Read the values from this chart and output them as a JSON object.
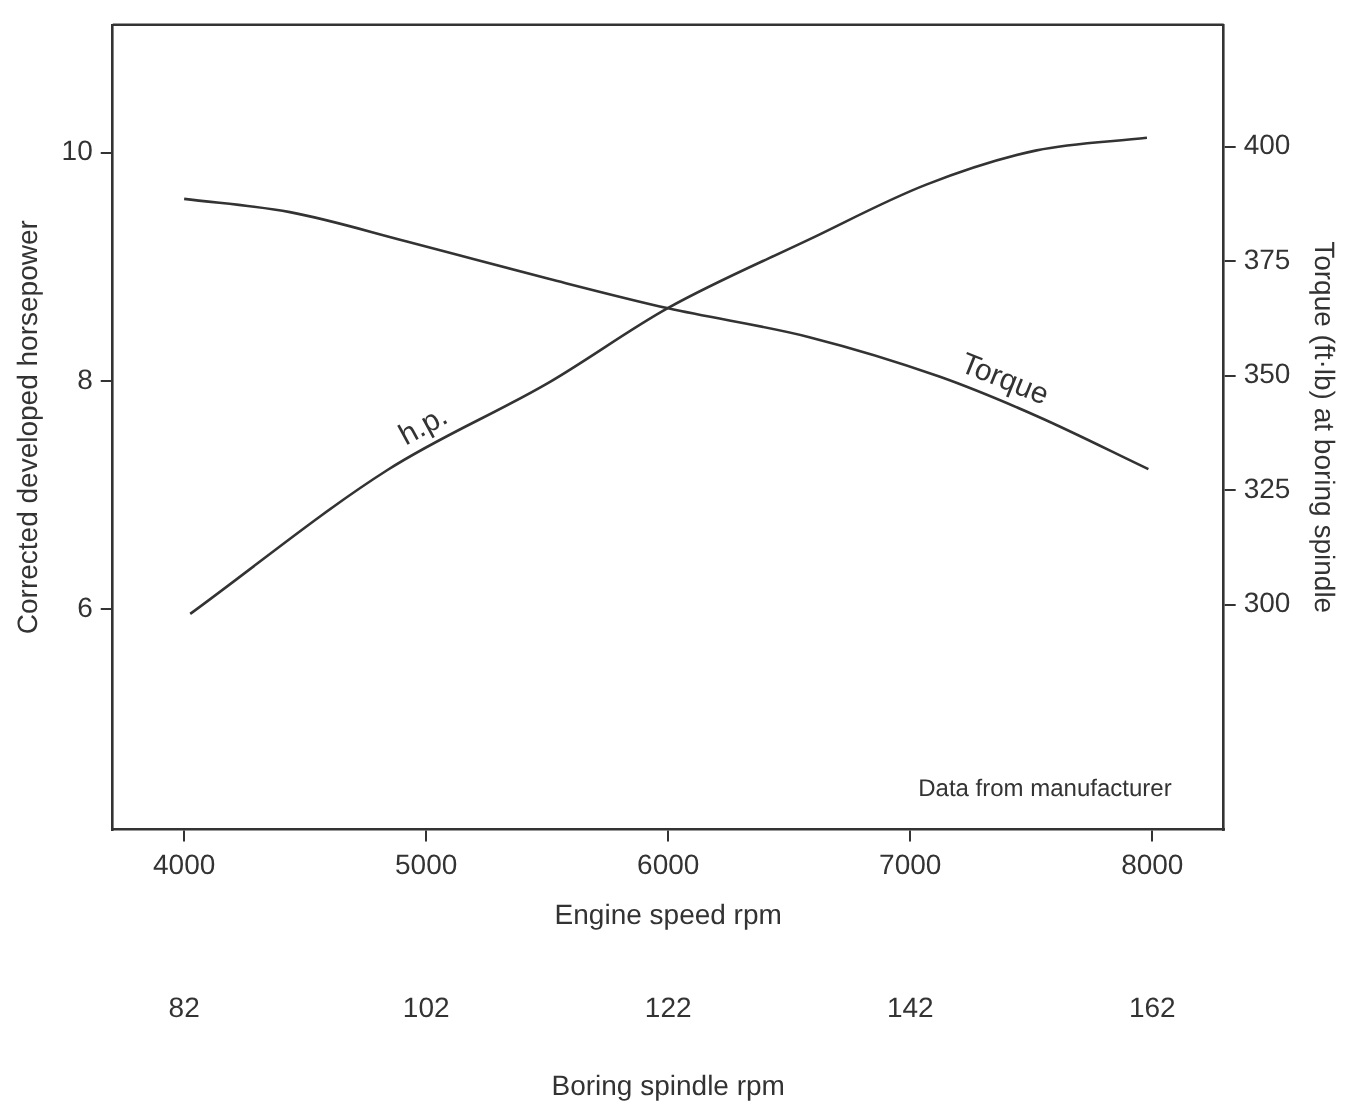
{
  "chart_data": {
    "type": "line",
    "xlabel": "Engine speed rpm",
    "ylabel": "Corrected developed horsepower",
    "y2label": "Torque (ft·lb) at boring spindle",
    "x2label": "Boring spindle rpm",
    "xlim": [
      3705,
      8295
    ],
    "xticks": [
      4000,
      5000,
      6000,
      7000,
      8000
    ],
    "x2lim": [
      76.1,
      167.9
    ],
    "x2ticks": [
      82,
      102,
      122,
      142,
      162
    ],
    "ylim": [
      4.07,
      11.12
    ],
    "yticks": [
      6,
      8,
      10
    ],
    "y2lim": [
      250.9,
      426.6
    ],
    "y2ticks": [
      300,
      325,
      350,
      375,
      400
    ],
    "marker": "none",
    "line_style": "solid",
    "series": [
      {
        "name": "h.p.",
        "color": "#333333",
        "axis": "y",
        "x": [
          4025,
          4840,
          5510,
          6000,
          6583,
          7066,
          7522,
          7978
        ],
        "values": [
          5.96,
          7.22,
          7.99,
          8.64,
          9.24,
          9.72,
          10.02,
          10.13
        ]
      },
      {
        "name": "Torque",
        "color": "#333333",
        "axis": "y2",
        "x": [
          4000,
          4437,
          4920,
          5510,
          6000,
          6583,
          7120,
          7522,
          7984
        ],
        "values": [
          388.6,
          385.7,
          379.3,
          371.1,
          364.7,
          358.4,
          349.8,
          341.2,
          329.6
        ]
      }
    ],
    "annotations": [
      "Data from manufacturer"
    ]
  }
}
